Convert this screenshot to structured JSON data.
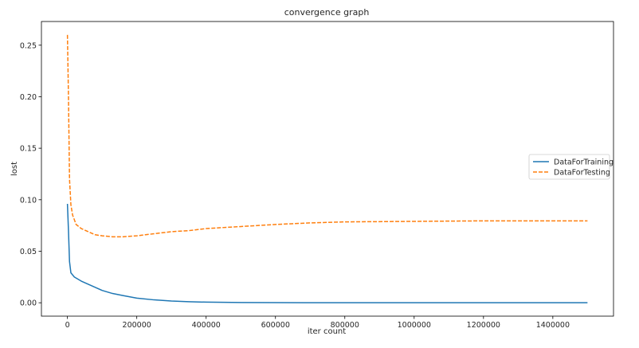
{
  "chart_data": {
    "type": "line",
    "title": "convergence graph",
    "xlabel": "iter count",
    "ylabel": "lost",
    "xlim": [
      -75000,
      1575000
    ],
    "ylim": [
      -0.013,
      0.273
    ],
    "xticks": [
      0,
      200000,
      400000,
      600000,
      800000,
      1000000,
      1200000,
      1400000
    ],
    "xtick_labels": [
      "0",
      "200000",
      "400000",
      "600000",
      "800000",
      "1000000",
      "1200000",
      "1400000"
    ],
    "yticks": [
      0.0,
      0.05,
      0.1,
      0.15,
      0.2,
      0.25
    ],
    "ytick_labels": [
      "0.00",
      "0.05",
      "0.10",
      "0.15",
      "0.20",
      "0.25"
    ],
    "grid": false,
    "legend_position": "center-right",
    "series": [
      {
        "name": "DataForTraining",
        "color": "#1f77b4",
        "style": "solid",
        "points": [
          [
            0,
            0.096
          ],
          [
            3000,
            0.07
          ],
          [
            6000,
            0.04
          ],
          [
            10000,
            0.029
          ],
          [
            20000,
            0.025
          ],
          [
            40000,
            0.021
          ],
          [
            60000,
            0.018
          ],
          [
            80000,
            0.015
          ],
          [
            100000,
            0.012
          ],
          [
            130000,
            0.009
          ],
          [
            160000,
            0.007
          ],
          [
            200000,
            0.0045
          ],
          [
            250000,
            0.0028
          ],
          [
            300000,
            0.0017
          ],
          [
            350000,
            0.001
          ],
          [
            400000,
            0.0006
          ],
          [
            500000,
            0.0002
          ],
          [
            600000,
            0.0001
          ],
          [
            800000,
            0.0
          ],
          [
            1000000,
            0.0
          ],
          [
            1200000,
            0.0
          ],
          [
            1500000,
            0.0
          ]
        ]
      },
      {
        "name": "DataForTesting",
        "color": "#ff7f0e",
        "style": "dashed",
        "points": [
          [
            0,
            0.26
          ],
          [
            3000,
            0.2
          ],
          [
            6000,
            0.12
          ],
          [
            10000,
            0.095
          ],
          [
            15000,
            0.085
          ],
          [
            25000,
            0.076
          ],
          [
            40000,
            0.072
          ],
          [
            60000,
            0.069
          ],
          [
            80000,
            0.066
          ],
          [
            100000,
            0.065
          ],
          [
            130000,
            0.064
          ],
          [
            160000,
            0.064
          ],
          [
            200000,
            0.065
          ],
          [
            250000,
            0.067
          ],
          [
            300000,
            0.069
          ],
          [
            350000,
            0.07
          ],
          [
            400000,
            0.072
          ],
          [
            500000,
            0.074
          ],
          [
            600000,
            0.076
          ],
          [
            700000,
            0.0775
          ],
          [
            800000,
            0.0785
          ],
          [
            1000000,
            0.079
          ],
          [
            1200000,
            0.0795
          ],
          [
            1400000,
            0.0795
          ],
          [
            1500000,
            0.0795
          ]
        ]
      }
    ]
  }
}
